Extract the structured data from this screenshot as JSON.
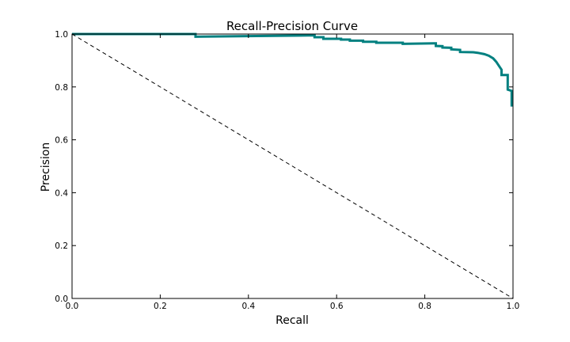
{
  "chart_data": {
    "type": "line",
    "title": "Recall-Precision Curve",
    "xlabel": "Recall",
    "ylabel": "Precision",
    "xlim": [
      0.0,
      1.0
    ],
    "ylim": [
      0.0,
      1.0
    ],
    "xticks": [
      "0.0",
      "0.2",
      "0.4",
      "0.6",
      "0.8",
      "1.0"
    ],
    "yticks": [
      "0.0",
      "0.2",
      "0.4",
      "0.6",
      "0.8",
      "1.0"
    ],
    "grid": false,
    "series": [
      {
        "color": "#008080",
        "style": "solid",
        "points": [
          [
            0.0,
            1.0
          ],
          [
            0.28,
            1.0
          ],
          [
            0.28,
            0.99
          ],
          [
            0.55,
            0.995
          ],
          [
            0.55,
            0.988
          ],
          [
            0.57,
            0.988
          ],
          [
            0.57,
            0.982
          ],
          [
            0.61,
            0.982
          ],
          [
            0.61,
            0.979
          ],
          [
            0.63,
            0.979
          ],
          [
            0.63,
            0.975
          ],
          [
            0.66,
            0.975
          ],
          [
            0.66,
            0.971
          ],
          [
            0.69,
            0.971
          ],
          [
            0.69,
            0.967
          ],
          [
            0.75,
            0.967
          ],
          [
            0.75,
            0.963
          ],
          [
            0.82,
            0.965
          ],
          [
            0.825,
            0.965
          ],
          [
            0.825,
            0.955
          ],
          [
            0.84,
            0.954
          ],
          [
            0.84,
            0.949
          ],
          [
            0.86,
            0.948
          ],
          [
            0.86,
            0.942
          ],
          [
            0.88,
            0.94
          ],
          [
            0.88,
            0.932
          ],
          [
            0.91,
            0.931
          ],
          [
            0.92,
            0.929
          ],
          [
            0.935,
            0.924
          ],
          [
            0.945,
            0.918
          ],
          [
            0.955,
            0.908
          ],
          [
            0.962,
            0.895
          ],
          [
            0.968,
            0.88
          ],
          [
            0.974,
            0.865
          ],
          [
            0.974,
            0.845
          ],
          [
            0.988,
            0.845
          ],
          [
            0.988,
            0.79
          ],
          [
            0.997,
            0.785
          ],
          [
            0.997,
            0.73
          ],
          [
            1.0,
            0.73
          ]
        ]
      },
      {
        "color": "#000000",
        "style": "dashed",
        "points": [
          [
            0.0,
            1.0
          ],
          [
            1.0,
            0.0
          ]
        ]
      }
    ]
  }
}
